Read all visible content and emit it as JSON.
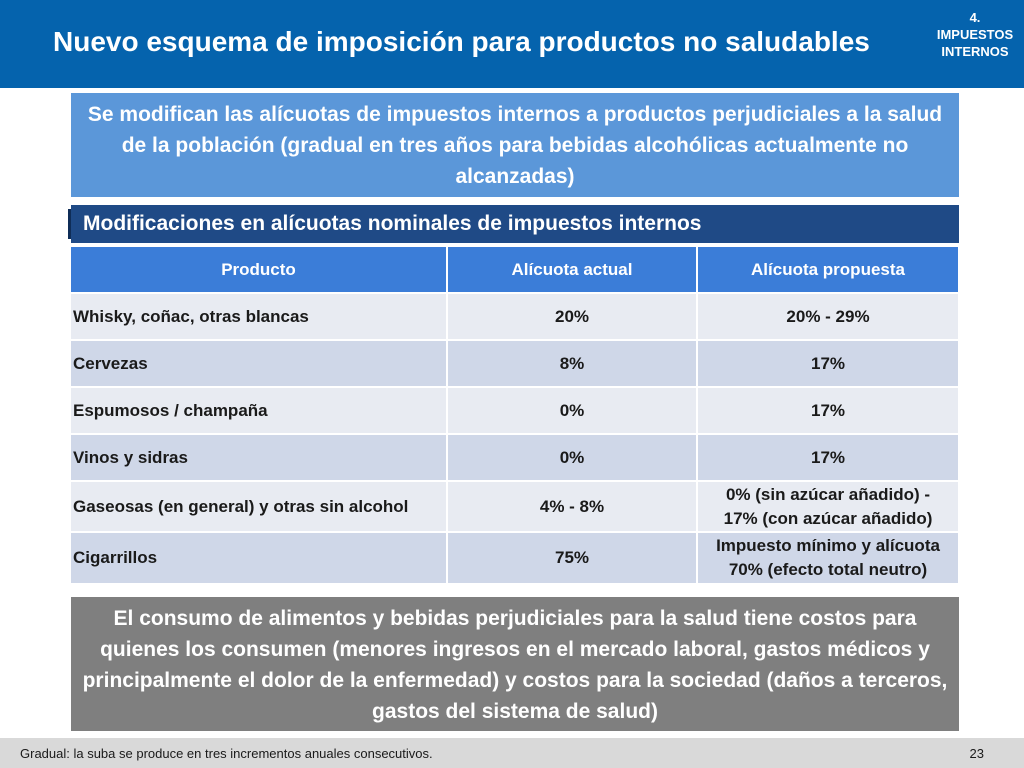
{
  "header": {
    "title": "Nuevo esquema de imposición para productos no saludables",
    "section_tag_line1": "4. IMPUESTOS",
    "section_tag_line2": "INTERNOS"
  },
  "intro": {
    "text": "Se modifican las alícuotas de impuestos internos a productos perjudiciales a la salud de la población (gradual en tres años para bebidas alcohólicas actualmente no alcanzadas)"
  },
  "subheader": {
    "text": "Modificaciones en alícuotas nominales de impuestos internos"
  },
  "table": {
    "headers": [
      "Producto",
      "Alícuota actual",
      "Alícuota propuesta"
    ],
    "rows": [
      {
        "product": "Whisky, coñac, otras blancas",
        "current": "20%",
        "proposed_line1": "20% - 29%",
        "proposed_line2": ""
      },
      {
        "product": "Cervezas",
        "current": "8%",
        "proposed_line1": "17%",
        "proposed_line2": ""
      },
      {
        "product": "Espumosos / champaña",
        "current": "0%",
        "proposed_line1": "17%",
        "proposed_line2": ""
      },
      {
        "product": "Vinos y sidras",
        "current": "0%",
        "proposed_line1": "17%",
        "proposed_line2": ""
      },
      {
        "product": "Gaseosas (en general) y otras sin alcohol",
        "current": "4% - 8%",
        "proposed_line1": "0% (sin azúcar añadido) -",
        "proposed_line2": "17% (con azúcar añadido)"
      },
      {
        "product": "Cigarrillos",
        "current": "75%",
        "proposed_line1": "Impuesto mínimo y alícuota",
        "proposed_line2": "70% (efecto total neutro)"
      }
    ]
  },
  "conclusion": {
    "text": "El consumo de alimentos y bebidas perjudiciales para la salud tiene costos para quienes los consumen (menores ingresos en el mercado laboral, gastos médicos y principalmente el dolor de la enfermedad) y costos para la sociedad (daños a terceros, gastos del sistema de salud)"
  },
  "footer": {
    "note": "Gradual: la suba se produce en tres incrementos anuales consecutivos.",
    "page_number": "23"
  }
}
